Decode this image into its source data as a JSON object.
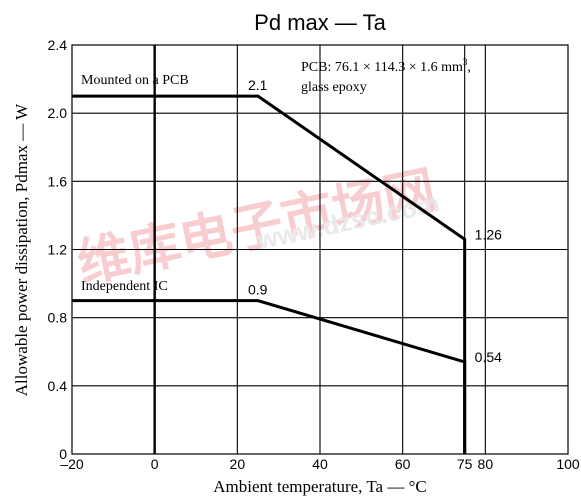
{
  "chart_data": {
    "type": "line",
    "title": "Pd max  —  Ta",
    "xlabel": "Ambient temperature, Ta — °C",
    "ylabel": "Allowable power dissipation, Pdmax — W",
    "xlim": [
      -20,
      100
    ],
    "ylim": [
      0,
      2.4
    ],
    "x_ticks": [
      {
        "value": -20,
        "label": "–20"
      },
      {
        "value": 0,
        "label": "0"
      },
      {
        "value": 20,
        "label": "20"
      },
      {
        "value": 40,
        "label": "40"
      },
      {
        "value": 60,
        "label": "60"
      },
      {
        "value": 75,
        "label": "75"
      },
      {
        "value": 80,
        "label": "80"
      },
      {
        "value": 100,
        "label": "100"
      }
    ],
    "y_ticks": [
      {
        "value": 0,
        "label": "0"
      },
      {
        "value": 0.4,
        "label": "0.4"
      },
      {
        "value": 0.8,
        "label": "0.8"
      },
      {
        "value": 1.2,
        "label": "1.2"
      },
      {
        "value": 1.6,
        "label": "1.6"
      },
      {
        "value": 2.0,
        "label": "2.0"
      },
      {
        "value": 2.4,
        "label": "2.4"
      }
    ],
    "grid": true,
    "series": [
      {
        "name": "Mounted on a PCB",
        "x": [
          -20,
          25,
          75,
          75
        ],
        "y": [
          2.1,
          2.1,
          1.26,
          0
        ]
      },
      {
        "name": "Independent IC",
        "x": [
          -20,
          25,
          75,
          75
        ],
        "y": [
          0.9,
          0.9,
          0.54,
          0
        ]
      }
    ],
    "point_labels": [
      {
        "x": 25,
        "y": 2.1,
        "text": "2.1"
      },
      {
        "x": 75,
        "y": 1.26,
        "text": "1.26"
      },
      {
        "x": 25,
        "y": 0.9,
        "text": "0.9"
      },
      {
        "x": 75,
        "y": 0.54,
        "text": "0.54"
      }
    ],
    "annotation": {
      "line1": "PCB: 76.1 × 114.3 × 1.6 mm",
      "superscript": "3",
      "line1_end": ",",
      "line2": "glass epoxy"
    }
  },
  "watermark": {
    "text": "维库电子市场网",
    "url": "www.dzsc.com"
  }
}
